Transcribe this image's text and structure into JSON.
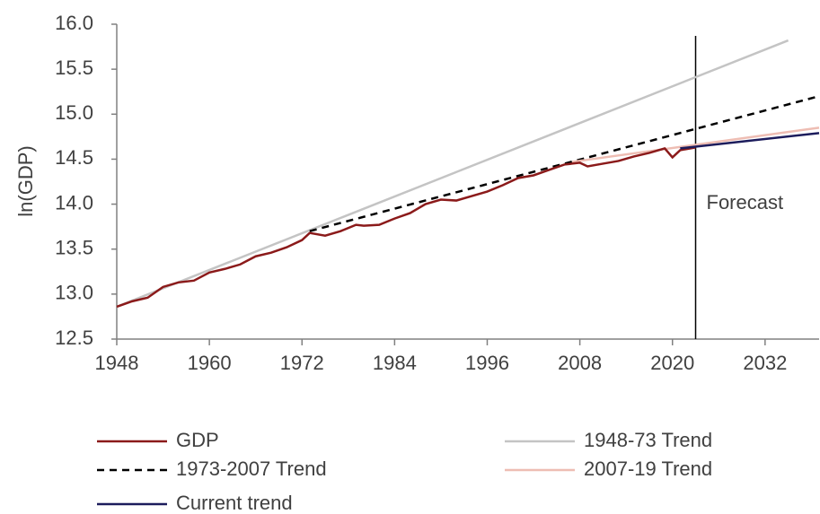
{
  "chart_data": {
    "type": "line",
    "y_label": "ln(GDP)",
    "xlim": [
      1948,
      2039
    ],
    "xticks": [
      1948,
      1960,
      1972,
      1984,
      1996,
      2008,
      2020,
      2032
    ],
    "ylim": [
      12.5,
      16.0
    ],
    "yticks": [
      12.5,
      {
        "value": 13.0,
        "label": "13.0"
      },
      13.5,
      {
        "value": 14.0,
        "label": "14.0"
      },
      14.5,
      {
        "value": 15.0,
        "label": "15.0"
      },
      15.5,
      {
        "value": 16.0,
        "label": "16.0"
      }
    ],
    "vline": 2023,
    "annotation": "Forecast",
    "series": [
      {
        "name": "GDP",
        "color": "#8b1a1a",
        "dashed": false,
        "x": [
          1948,
          1950,
          1952,
          1954,
          1956,
          1958,
          1960,
          1962,
          1964,
          1966,
          1968,
          1970,
          1972,
          1973,
          1975,
          1977,
          1979,
          1980,
          1982,
          1984,
          1986,
          1988,
          1990,
          1992,
          1994,
          1996,
          1998,
          2000,
          2002,
          2004,
          2006,
          2008,
          2009,
          2011,
          2013,
          2015,
          2017,
          2019,
          2020,
          2021,
          2023
        ],
        "values": [
          12.86,
          12.92,
          12.96,
          13.08,
          13.13,
          13.15,
          13.24,
          13.28,
          13.33,
          13.42,
          13.46,
          13.52,
          13.6,
          13.68,
          13.65,
          13.7,
          13.77,
          13.76,
          13.77,
          13.84,
          13.9,
          14.0,
          14.05,
          14.04,
          14.09,
          14.14,
          14.21,
          14.29,
          14.32,
          14.38,
          14.44,
          14.46,
          14.42,
          14.45,
          14.48,
          14.53,
          14.57,
          14.62,
          14.52,
          14.6,
          14.63
        ]
      },
      {
        "name": "1948-73 Trend",
        "color": "#c4c4c4",
        "dashed": false,
        "x": [
          1948,
          2035
        ],
        "values": [
          12.86,
          15.82
        ]
      },
      {
        "name": "1973-2007 Trend",
        "color": "#000000",
        "dashed": true,
        "x": [
          1973,
          2039
        ],
        "values": [
          13.7,
          15.2
        ]
      },
      {
        "name": "2007-19 Trend",
        "color": "#eebdb3",
        "dashed": false,
        "x": [
          2007,
          2039
        ],
        "values": [
          14.47,
          14.85
        ]
      },
      {
        "name": "Current trend",
        "color": "#1c1c5c",
        "dashed": false,
        "x": [
          2021,
          2039
        ],
        "values": [
          14.62,
          14.79
        ]
      }
    ]
  }
}
